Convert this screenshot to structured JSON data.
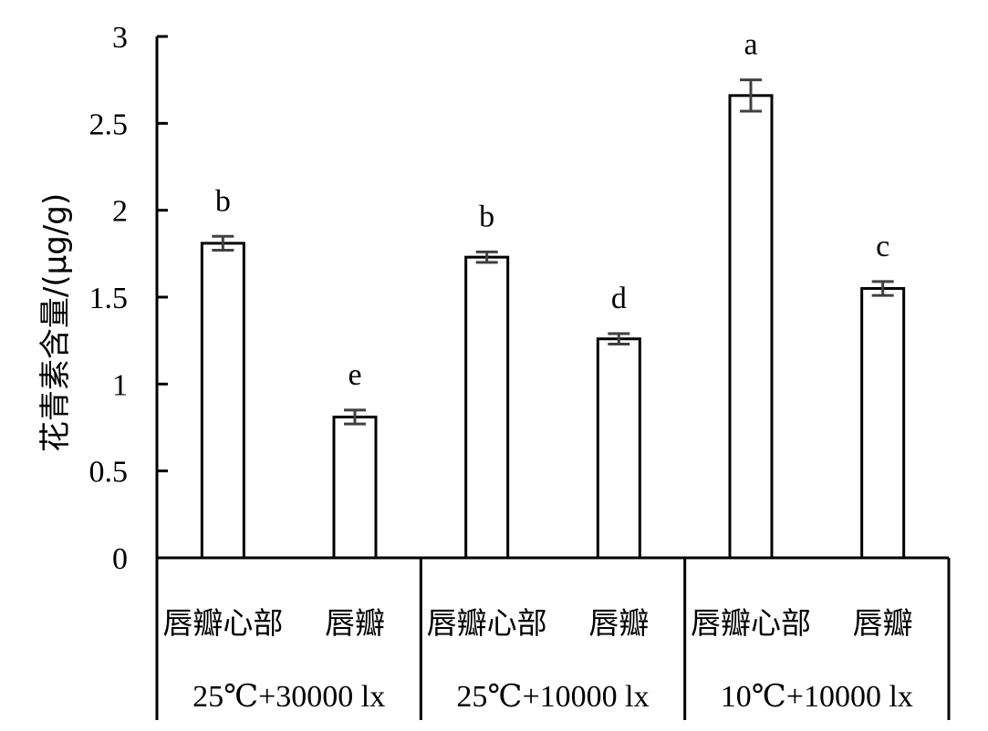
{
  "chart_data": {
    "type": "bar",
    "title": "",
    "ylabel": "花青素含量/(μg/g)",
    "xlabel": "",
    "ylim": [
      0,
      3
    ],
    "yticks": [
      0,
      0.5,
      1,
      1.5,
      2,
      2.5,
      3
    ],
    "ytick_labels": [
      "0",
      "0.5",
      "1",
      "1.5",
      "2",
      "2.5",
      "3"
    ],
    "grid": false,
    "legend": "none",
    "bar_fill": "#ffffff",
    "bar_stroke": "#000000",
    "errorbar_color": "#404040",
    "groups": [
      {
        "label": "25℃+30000 lx",
        "categories": [
          {
            "label": "唇瓣心部",
            "value": 1.81,
            "error": 0.04,
            "letter": "b"
          },
          {
            "label": "唇瓣",
            "value": 0.81,
            "error": 0.04,
            "letter": "e"
          }
        ]
      },
      {
        "label": "25℃+10000 lx",
        "categories": [
          {
            "label": "唇瓣心部",
            "value": 1.73,
            "error": 0.03,
            "letter": "b"
          },
          {
            "label": "唇瓣",
            "value": 1.26,
            "error": 0.03,
            "letter": "d"
          }
        ]
      },
      {
        "label": "10℃+10000 lx",
        "categories": [
          {
            "label": "唇瓣心部",
            "value": 2.66,
            "error": 0.09,
            "letter": "a"
          },
          {
            "label": "唇瓣",
            "value": 1.55,
            "error": 0.04,
            "letter": "c"
          }
        ]
      }
    ]
  }
}
